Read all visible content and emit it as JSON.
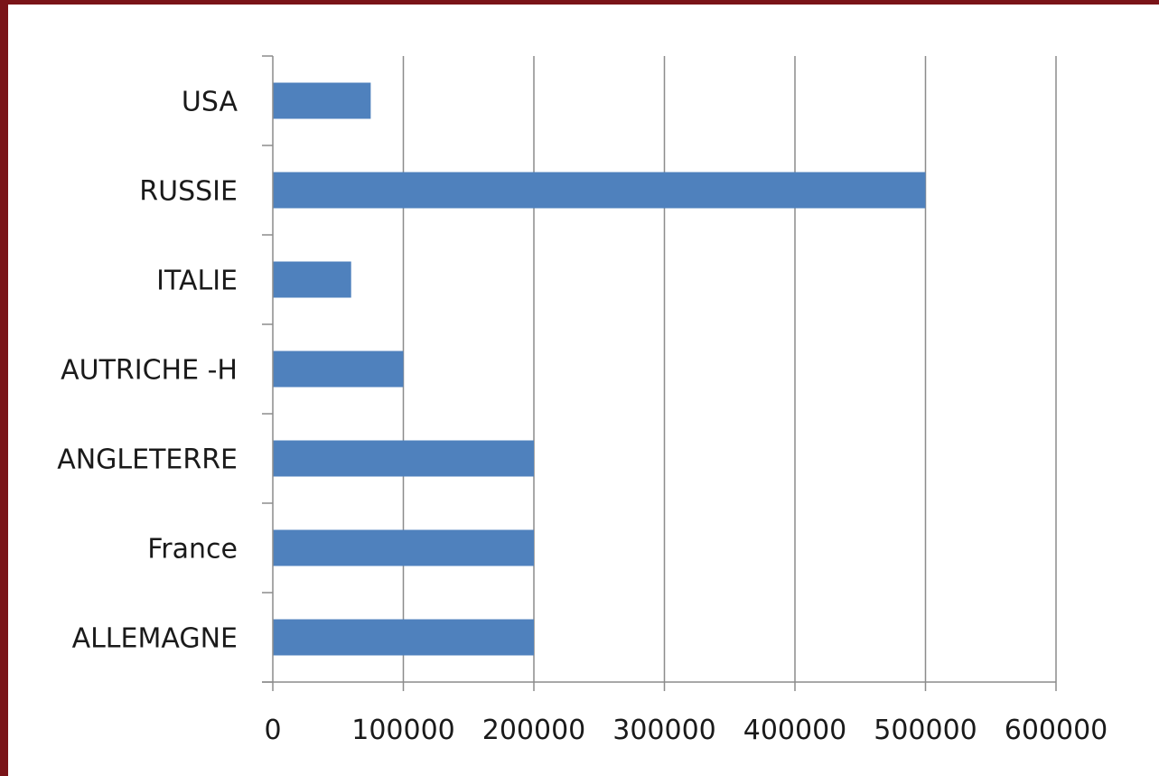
{
  "chart_data": {
    "type": "bar",
    "orientation": "horizontal",
    "categories": [
      "ALLEMAGNE",
      "France",
      "ANGLETERRE",
      "AUTRICHE -H",
      "ITALIE",
      "RUSSIE",
      "USA"
    ],
    "values": [
      200000,
      200000,
      200000,
      100000,
      60000,
      500000,
      75000
    ],
    "x_ticks": [
      "0",
      "100000",
      "200000",
      "300000",
      "400000",
      "500000",
      "600000"
    ],
    "xlim": [
      0,
      600000
    ],
    "grid": "vertical",
    "bar_color": "#4f81bd",
    "frame_color": "#7a1418",
    "title": "",
    "xlabel": "",
    "ylabel": ""
  }
}
